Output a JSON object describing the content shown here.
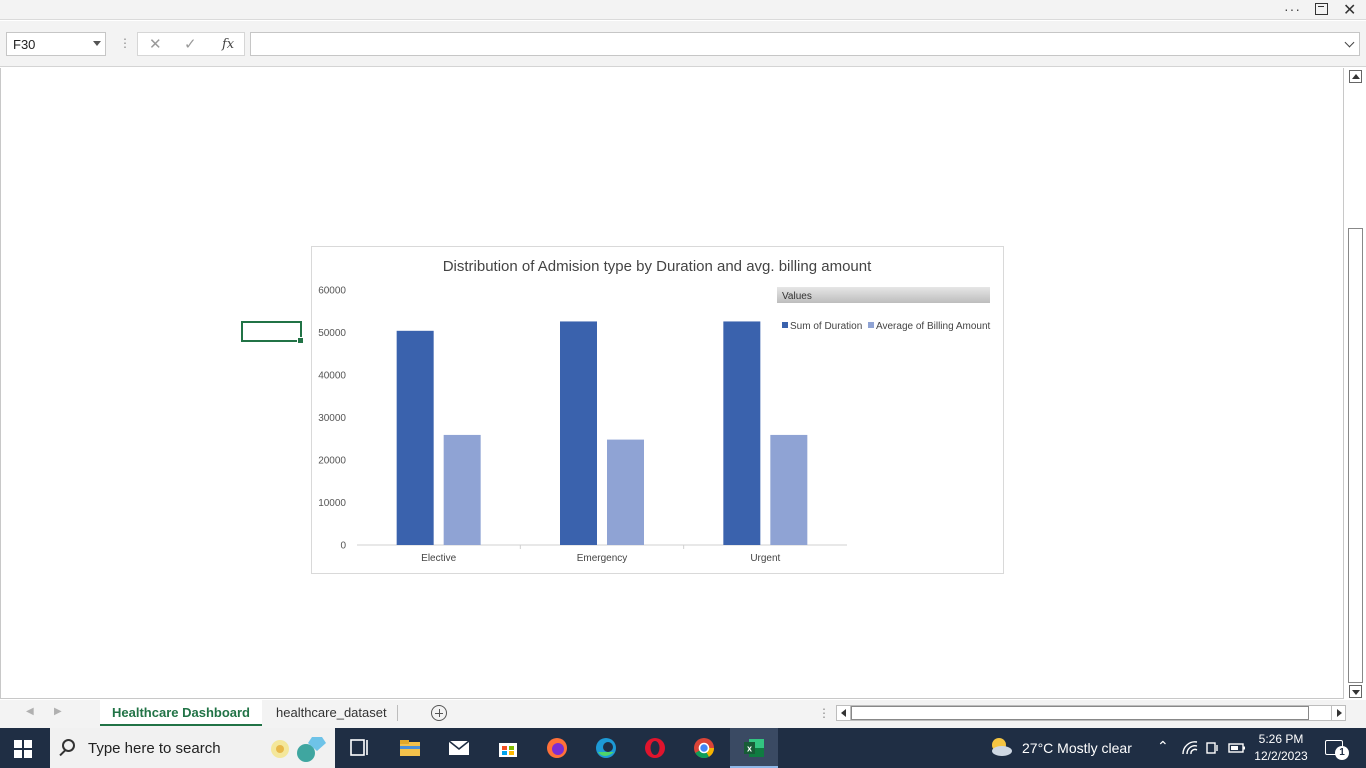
{
  "title_bar": {
    "more_icon": "ellipsis-icon",
    "restore_icon": "restore-icon",
    "close_icon": "close-icon"
  },
  "formula_bar": {
    "name_box": "F30",
    "cancel_glyph": "✕",
    "enter_glyph": "✓",
    "fx_label": "fx",
    "formula_value": ""
  },
  "chart_data": {
    "type": "bar",
    "title": "Distribution of Admision type by Duration and avg. billing amount",
    "categories": [
      "Elective",
      "Emergency",
      "Urgent"
    ],
    "series": [
      {
        "name": "Sum of Duration",
        "color": "#3a62ad",
        "values": [
          50400,
          52600,
          52600
        ]
      },
      {
        "name": "Average of Billing Amount",
        "color": "#8fa3d4",
        "values": [
          25900,
          24800,
          25900
        ]
      }
    ],
    "y_ticks": [
      "0",
      "10000",
      "20000",
      "30000",
      "40000",
      "50000",
      "60000"
    ],
    "ylim": [
      0,
      60000
    ],
    "legend": {
      "header": "Values",
      "placement": "top-right"
    },
    "grid": false
  },
  "sheet_tabs": [
    {
      "label": "Healthcare Dashboard",
      "active": true
    },
    {
      "label": "healthcare_dataset",
      "active": false
    }
  ],
  "taskbar": {
    "search_placeholder": "Type here to search",
    "weather": "27°C  Mostly clear",
    "time": "5:26 PM",
    "date": "12/2/2023",
    "notification_count": "1"
  }
}
